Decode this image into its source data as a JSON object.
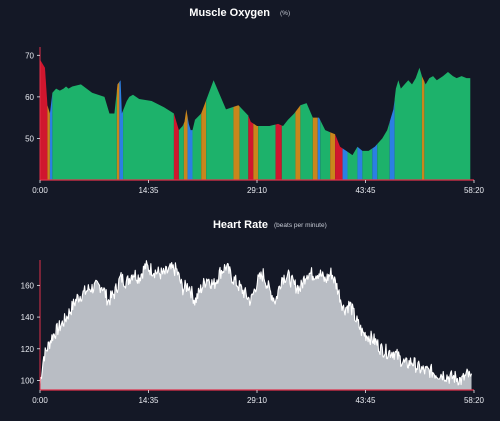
{
  "chart_data": [
    {
      "type": "area",
      "title": "Muscle Oxygen",
      "unit": "(%)",
      "xlabel": "",
      "ylabel": "",
      "xlim_seconds": [
        0,
        3500
      ],
      "ylim": [
        40,
        72
      ],
      "xtick_labels": [
        "0:00",
        "14:35",
        "29:10",
        "43:45",
        "58:20"
      ],
      "ytick_values": [
        50,
        60,
        70
      ],
      "grid": false,
      "zone_colors": {
        "green": "#1db26b",
        "orange": "#c9861c",
        "red": "#d0162e",
        "blue": "#2b7fe3"
      },
      "baseline_color": "#e0304a",
      "x": [
        0,
        40,
        60,
        80,
        100,
        130,
        160,
        190,
        210,
        230,
        260,
        330,
        420,
        520,
        560,
        600,
        625,
        650,
        660,
        700,
        720,
        750,
        800,
        900,
        1000,
        1080,
        1120,
        1150,
        1165,
        1180,
        1200,
        1215,
        1230,
        1250,
        1300,
        1400,
        1500,
        1600,
        1680,
        1700,
        1750,
        1800,
        1850,
        1920,
        1960,
        2000,
        2050,
        2100,
        2150,
        2200,
        2250,
        2300,
        2380,
        2420,
        2470,
        2520,
        2560,
        2600,
        2650,
        2700,
        2760,
        2800,
        2830,
        2850,
        2870,
        2890,
        2910,
        2940,
        2970,
        3000,
        3030,
        3060,
        3080,
        3110,
        3140,
        3170,
        3200,
        3250,
        3290,
        3330,
        3360,
        3400,
        3440,
        3470
      ],
      "y": [
        69,
        67,
        58,
        56,
        61,
        62,
        61.5,
        62,
        62.5,
        62,
        62.5,
        63,
        61,
        60,
        56,
        56,
        63,
        64,
        56,
        59,
        60,
        60.5,
        59.5,
        59,
        57.5,
        56,
        52,
        53,
        54,
        57,
        53.5,
        52,
        52,
        54.5,
        56,
        64,
        57,
        58,
        55.5,
        54,
        53,
        53,
        53,
        53.5,
        53,
        54.5,
        56,
        58,
        58.5,
        55,
        55,
        52,
        51,
        48,
        47,
        46,
        48,
        47,
        47,
        48,
        50,
        52,
        55,
        57,
        62,
        64,
        62,
        63,
        64,
        63,
        64.5,
        67,
        65,
        63,
        64.5,
        65,
        64,
        65,
        66,
        65,
        64.5,
        65,
        64.5,
        64.5
      ],
      "zones": [
        [
          "red",
          0,
          60
        ],
        [
          "orange",
          60,
          80
        ],
        [
          "blue",
          80,
          100
        ],
        [
          "green",
          100,
          620
        ],
        [
          "orange",
          620,
          640
        ],
        [
          "blue",
          640,
          670
        ],
        [
          "green",
          670,
          1080
        ],
        [
          "red",
          1080,
          1120
        ],
        [
          "green",
          1120,
          1160
        ],
        [
          "orange",
          1160,
          1190
        ],
        [
          "blue",
          1190,
          1230
        ],
        [
          "green",
          1230,
          1300
        ],
        [
          "orange",
          1300,
          1340
        ],
        [
          "green",
          1340,
          1560
        ],
        [
          "orange",
          1560,
          1610
        ],
        [
          "green",
          1610,
          1680
        ],
        [
          "red",
          1680,
          1720
        ],
        [
          "orange",
          1720,
          1760
        ],
        [
          "green",
          1760,
          1900
        ],
        [
          "red",
          1900,
          1950
        ],
        [
          "green",
          1950,
          2060
        ],
        [
          "orange",
          2060,
          2100
        ],
        [
          "green",
          2100,
          2200
        ],
        [
          "orange",
          2200,
          2240
        ],
        [
          "blue",
          2240,
          2260
        ],
        [
          "green",
          2260,
          2340
        ],
        [
          "orange",
          2340,
          2380
        ],
        [
          "red",
          2380,
          2440
        ],
        [
          "blue",
          2440,
          2480
        ],
        [
          "green",
          2480,
          2560
        ],
        [
          "blue",
          2560,
          2600
        ],
        [
          "green",
          2600,
          2680
        ],
        [
          "blue",
          2680,
          2720
        ],
        [
          "green",
          2720,
          2820
        ],
        [
          "blue",
          2820,
          2860
        ],
        [
          "green",
          2860,
          3080
        ],
        [
          "orange",
          3080,
          3100
        ],
        [
          "green",
          3100,
          3500
        ]
      ]
    },
    {
      "type": "area",
      "title": "Heart Rate",
      "unit": "(beats per minute)",
      "xlabel": "",
      "ylabel": "",
      "xlim_seconds": [
        0,
        3500
      ],
      "ylim": [
        94,
        176
      ],
      "xtick_labels": [
        "0:00",
        "14:35",
        "29:10",
        "43:45",
        "58:20"
      ],
      "ytick_values": [
        100,
        120,
        140,
        160
      ],
      "grid": false,
      "fill_color": "#b9bdc4",
      "line_color": "#ffffff",
      "baseline_color": "#e0304a",
      "x": [
        0,
        30,
        100,
        200,
        300,
        400,
        500,
        550,
        600,
        650,
        700,
        750,
        800,
        850,
        900,
        950,
        1000,
        1050,
        1100,
        1150,
        1200,
        1250,
        1300,
        1350,
        1400,
        1450,
        1500,
        1550,
        1600,
        1650,
        1700,
        1750,
        1800,
        1850,
        1900,
        1950,
        2000,
        2050,
        2100,
        2150,
        2200,
        2250,
        2300,
        2350,
        2400,
        2450,
        2500,
        2550,
        2600,
        2650,
        2700,
        2750,
        2800,
        2850,
        2900,
        2950,
        3000,
        3050,
        3100,
        3150,
        3200,
        3250,
        3300,
        3350,
        3400,
        3450,
        3480
      ],
      "y": [
        98,
        115,
        128,
        138,
        152,
        158,
        160,
        150,
        155,
        165,
        162,
        168,
        165,
        172,
        170,
        168,
        167,
        170,
        170,
        158,
        160,
        150,
        158,
        165,
        160,
        168,
        172,
        165,
        160,
        155,
        150,
        162,
        167,
        157,
        150,
        165,
        166,
        160,
        158,
        168,
        167,
        168,
        163,
        168,
        158,
        145,
        148,
        138,
        130,
        128,
        125,
        120,
        118,
        118,
        114,
        110,
        112,
        108,
        106,
        106,
        104,
        104,
        102,
        102,
        100,
        104,
        100
      ]
    }
  ]
}
